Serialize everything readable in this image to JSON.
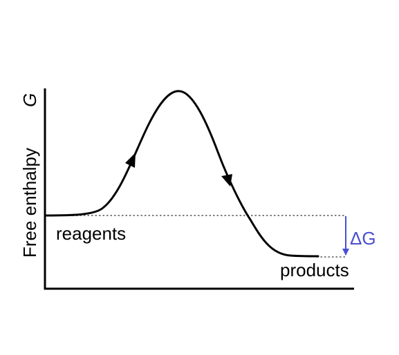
{
  "diagram": {
    "y_axis_label": "Free enthalpy",
    "y_axis_symbol": "G",
    "reagents_label": "reagents",
    "products_label": "products",
    "delta_symbol": "ΔG",
    "colors": {
      "curve": "#000000",
      "axes": "#000000",
      "reference_lines": "#7f7f7f",
      "delta": "#4a4fd1"
    }
  }
}
